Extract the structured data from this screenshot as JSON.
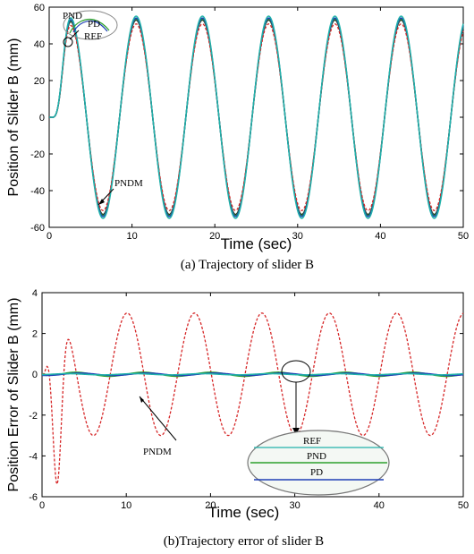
{
  "chart_data": [
    {
      "type": "line",
      "xlabel": "Time (sec)",
      "ylabel": "Position of Slider B (mm)",
      "caption": "(a)    Trajectory of slider B",
      "xlim": [
        0,
        50
      ],
      "ylim": [
        -60,
        60
      ],
      "xticks": [
        0,
        10,
        20,
        30,
        40,
        50
      ],
      "yticks": [
        -60,
        -40,
        -20,
        0,
        20,
        40,
        60
      ],
      "grid": false,
      "legend": "none",
      "series": [
        {
          "name": "REF",
          "color": "#1a1a1a",
          "style": "solid",
          "description": "approx. 0 to 40 mm rise over first 3 s, then sinusoid amplitude 53 mm, period 8 s"
        },
        {
          "name": "PD",
          "color": "#2ca02c",
          "style": "solid",
          "description": "tracks REF"
        },
        {
          "name": "PND",
          "color": "#1f3fb5",
          "style": "solid",
          "description": "tracks REF"
        },
        {
          "name": "PNDM",
          "color": "#d62728",
          "style": "dashed",
          "description": "amplitude about 51 mm, slightly below REF peaks"
        },
        {
          "name": "",
          "color": "#20b2aa",
          "style": "solid",
          "description": "cyan trace, amplitude about 55 mm"
        }
      ],
      "annotations": [
        {
          "text": "PND"
        },
        {
          "text": "PD"
        },
        {
          "text": "REF"
        },
        {
          "text": "PNDM"
        }
      ]
    },
    {
      "type": "line",
      "xlabel": "Time (sec)",
      "ylabel": "Position Error of Slider B (mm)",
      "caption": "(b)Trajectory error of slider B",
      "xlim": [
        0,
        50
      ],
      "ylim": [
        -6,
        4
      ],
      "xticks": [
        0,
        10,
        20,
        30,
        40,
        50
      ],
      "yticks": [
        -6,
        -4,
        -2,
        0,
        2,
        4
      ],
      "grid": false,
      "legend": "none",
      "series": [
        {
          "name": "PNDM",
          "color": "#d62728",
          "style": "dashed",
          "description": "oscillates between -3 and 3 mm with period 8 s; initial dip to about -5.3 mm near t=1.8 s"
        },
        {
          "name": "PND",
          "color": "#2ca02c",
          "style": "solid",
          "description": "near zero, within about +/-0.15 mm"
        },
        {
          "name": "PD",
          "color": "#1f3fb5",
          "style": "solid",
          "description": "near zero"
        },
        {
          "name": "REF",
          "color": "#20b2aa",
          "style": "solid",
          "description": "near zero"
        }
      ],
      "annotations": [
        {
          "text": "PNDM"
        },
        {
          "text": "REF"
        },
        {
          "text": "PND"
        },
        {
          "text": "PD"
        }
      ]
    }
  ]
}
